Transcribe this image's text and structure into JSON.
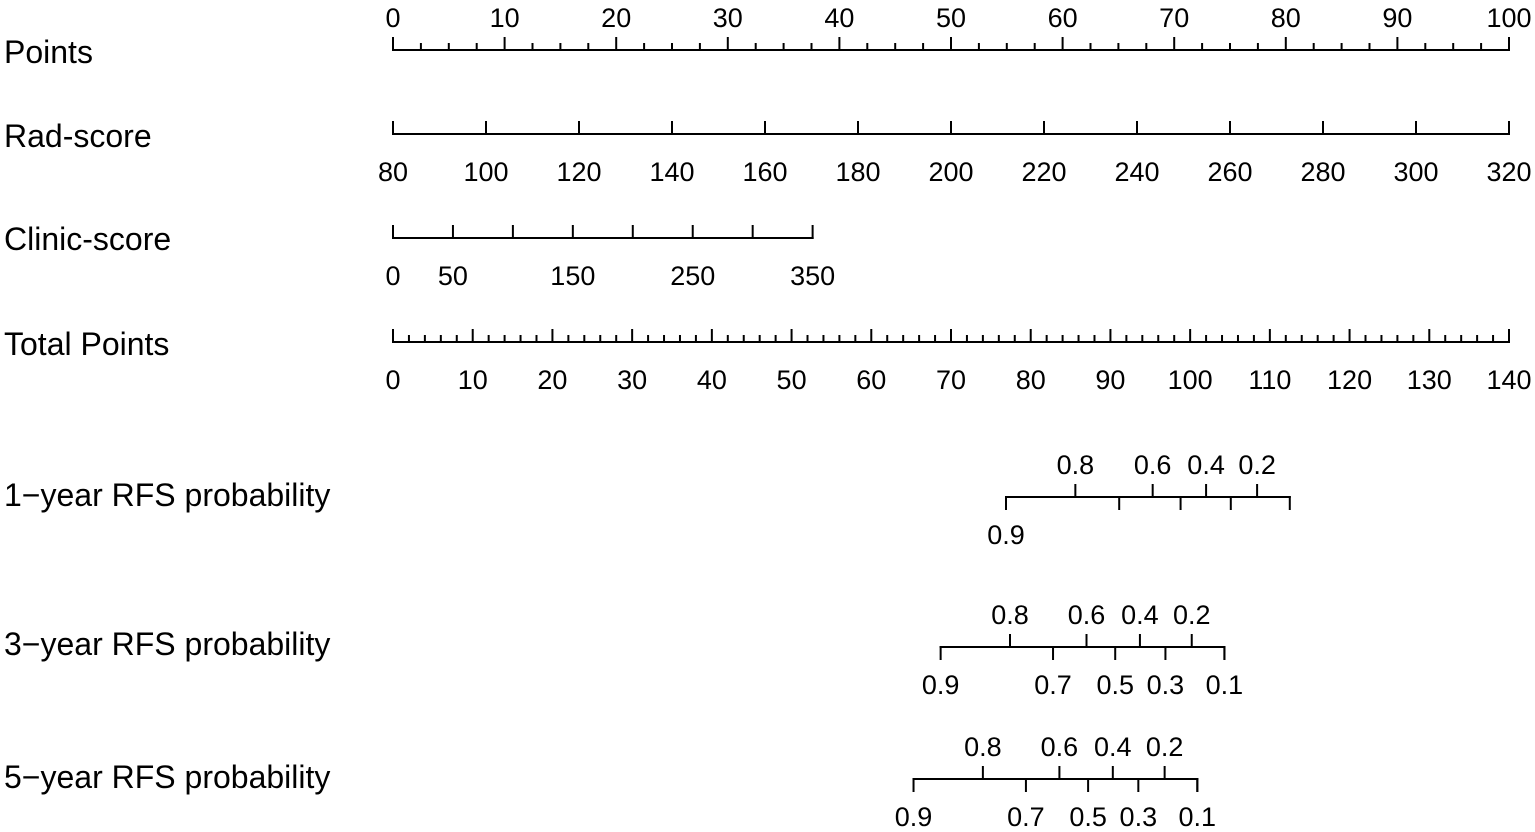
{
  "chart_data": {
    "type": "nomogram",
    "rows": [
      {
        "key": "points",
        "label": "Points",
        "range": [
          0,
          100
        ],
        "labeled_ticks": [
          0,
          10,
          20,
          30,
          40,
          50,
          60,
          70,
          80,
          90,
          100
        ],
        "minor_step": 2.5,
        "labels_side": "above"
      },
      {
        "key": "rad_score",
        "label": "Rad-score",
        "range": [
          80,
          320
        ],
        "points_range": [
          0,
          100
        ],
        "labeled_ticks": [
          80,
          100,
          120,
          140,
          160,
          180,
          200,
          220,
          240,
          260,
          280,
          300,
          320
        ],
        "labels_side": "below"
      },
      {
        "key": "clinic_score",
        "label": "Clinic-score",
        "range": [
          0,
          350
        ],
        "points_range": [
          0,
          37.6
        ],
        "ticks": [
          0,
          50,
          100,
          150,
          200,
          250,
          300,
          350
        ],
        "labeled_ticks": [
          0,
          50,
          150,
          250,
          350
        ],
        "labels_side": "below"
      },
      {
        "key": "total_points",
        "label": "Total Points",
        "range": [
          0,
          140
        ],
        "labeled_ticks": [
          0,
          10,
          20,
          30,
          40,
          50,
          60,
          70,
          80,
          90,
          100,
          110,
          120,
          130,
          140
        ],
        "minor_step": 2,
        "labels_side": "below"
      },
      {
        "key": "rfs_1y",
        "label": "1−year RFS probability",
        "total_points_range": [
          76.9,
          112.5
        ],
        "ticks": [
          {
            "value": "0.9",
            "total_points": 76.9,
            "side": "below"
          },
          {
            "value": "0.8",
            "total_points": 85.6,
            "side": "above"
          },
          {
            "value": "0.7",
            "total_points": 91.1,
            "side": "none"
          },
          {
            "value": "0.6",
            "total_points": 95.3,
            "side": "above"
          },
          {
            "value": "0.5",
            "total_points": 98.8,
            "side": "none"
          },
          {
            "value": "0.4",
            "total_points": 102.0,
            "side": "above"
          },
          {
            "value": "0.3",
            "total_points": 105.1,
            "side": "none"
          },
          {
            "value": "0.2",
            "total_points": 108.4,
            "side": "above"
          }
        ]
      },
      {
        "key": "rfs_3y",
        "label": "3−year RFS probability",
        "total_points_range": [
          68.7,
          104.3
        ],
        "ticks": [
          {
            "value": "0.9",
            "total_points": 68.7,
            "side": "below"
          },
          {
            "value": "0.8",
            "total_points": 77.4,
            "side": "above"
          },
          {
            "value": "0.7",
            "total_points": 82.8,
            "side": "below"
          },
          {
            "value": "0.6",
            "total_points": 87.0,
            "side": "above"
          },
          {
            "value": "0.5",
            "total_points": 90.6,
            "side": "below"
          },
          {
            "value": "0.4",
            "total_points": 93.7,
            "side": "above"
          },
          {
            "value": "0.3",
            "total_points": 96.9,
            "side": "below"
          },
          {
            "value": "0.2",
            "total_points": 100.2,
            "side": "above"
          },
          {
            "value": "0.1",
            "total_points": 104.3,
            "side": "below"
          }
        ]
      },
      {
        "key": "rfs_5y",
        "label": "5−year RFS probability",
        "total_points_range": [
          65.3,
          100.9
        ],
        "ticks": [
          {
            "value": "0.9",
            "total_points": 65.3,
            "side": "below"
          },
          {
            "value": "0.8",
            "total_points": 74.0,
            "side": "above"
          },
          {
            "value": "0.7",
            "total_points": 79.4,
            "side": "below"
          },
          {
            "value": "0.6",
            "total_points": 83.6,
            "side": "above"
          },
          {
            "value": "0.5",
            "total_points": 87.2,
            "side": "below"
          },
          {
            "value": "0.4",
            "total_points": 90.3,
            "side": "above"
          },
          {
            "value": "0.3",
            "total_points": 93.5,
            "side": "below"
          },
          {
            "value": "0.2",
            "total_points": 96.8,
            "side": "above"
          },
          {
            "value": "0.1",
            "total_points": 100.9,
            "side": "below"
          }
        ]
      }
    ]
  }
}
